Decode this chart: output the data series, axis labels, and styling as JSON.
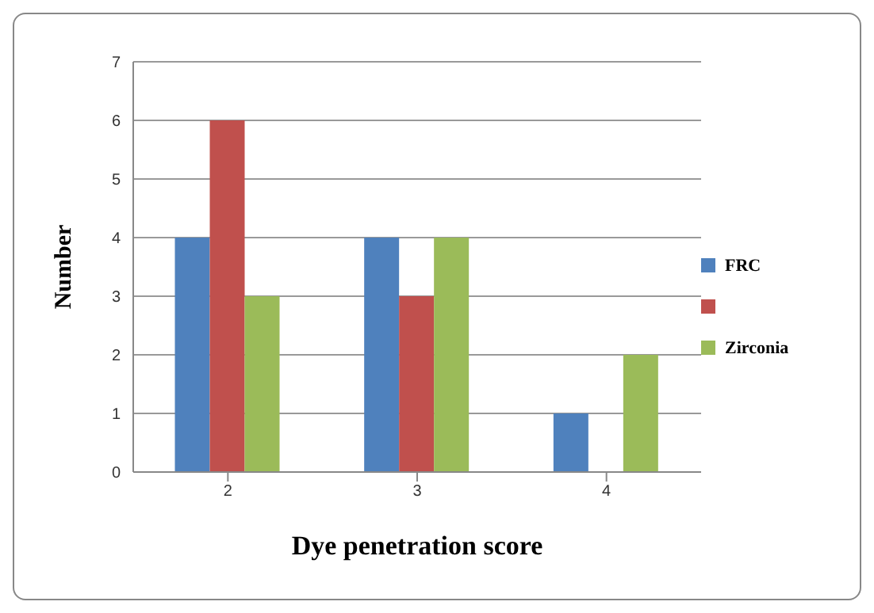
{
  "chart_data": {
    "type": "bar",
    "xlabel": "Dye penetration score",
    "ylabel": "Number",
    "categories": [
      "2",
      "3",
      "4"
    ],
    "series": [
      {
        "name": "FRC",
        "color": "#4f81bd",
        "values": [
          4,
          4,
          1
        ]
      },
      {
        "color": "#c0504d",
        "values": [
          6,
          3,
          0
        ]
      },
      {
        "name": "Zirconia",
        "color": "#9bbb59",
        "values": [
          3,
          4,
          2
        ]
      }
    ],
    "ylim": [
      0,
      7
    ],
    "yticks": [
      0,
      1,
      2,
      3,
      4,
      5,
      6,
      7
    ],
    "grid": "y",
    "legend": "right"
  }
}
